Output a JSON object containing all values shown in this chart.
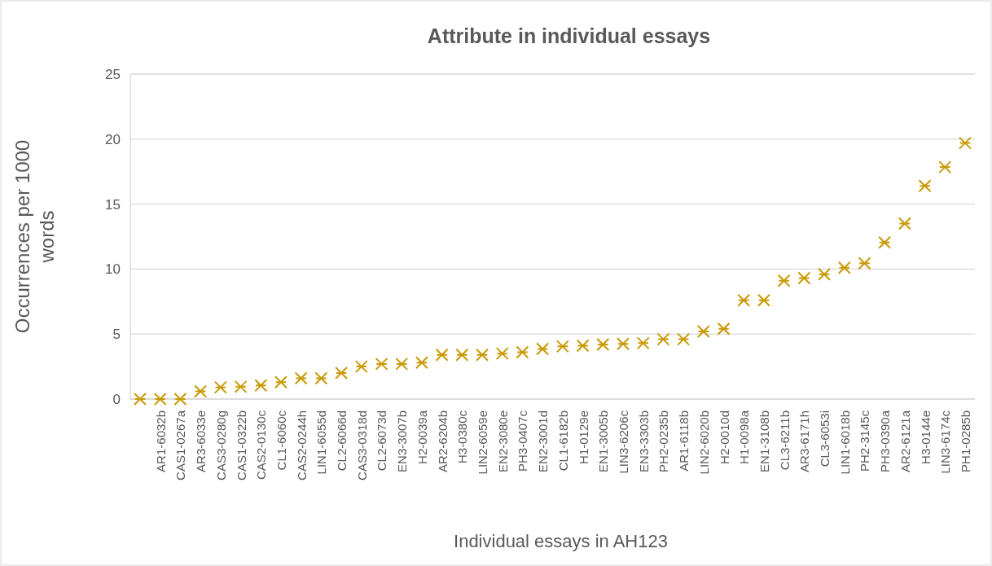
{
  "chart_data": {
    "type": "scatter",
    "title": "Attribute in individual essays",
    "xlabel": "Individual essays in AH123",
    "ylabel": "Occurrences per 1000 words",
    "categories": [
      null,
      "AR1-6032b",
      "CAS1-0267a",
      "AR3-6033e",
      "CAS3-0280g",
      "CAS1-0322b",
      "CAS2-0130c",
      "CL1-6060c",
      "CAS2-0244h",
      "LIN1-6055d",
      "CL2-6066d",
      "CAS3-0318d",
      "CL2-6073d",
      "EN3-3007b",
      "H2-0039a",
      "AR2-6204b",
      "H3-0380c",
      "LIN2-6059e",
      "EN2-3080e",
      "PH3-0407c",
      "EN2-3001d",
      "CL1-6182b",
      "H1-0129e",
      "EN1-3005b",
      "LIN3-6206c",
      "EN3-3303b",
      "PH2-0235b",
      "AR1-6118b",
      "LIN2-6020b",
      "H2-0010d",
      "H1-0098a",
      "EN1-3108b",
      "CL3-6211b",
      "AR3-6171h",
      "CL3-6053i",
      "LIN1-6018b",
      "PH2-3145c",
      "PH3-0390a",
      "AR2-6121a",
      "H3-0144e",
      "LIN3-6174c",
      "PH1-0285b"
    ],
    "series": [
      {
        "color": "#c99a06",
        "values": [
          0,
          0,
          0,
          0.6,
          0.9,
          0.95,
          1.05,
          1.3,
          1.6,
          1.6,
          2.0,
          2.5,
          2.7,
          2.7,
          2.8,
          3.4,
          3.4,
          3.4,
          3.5,
          3.6,
          3.85,
          4.05,
          4.1,
          4.2,
          4.25,
          4.3,
          4.6,
          4.6,
          5.2,
          5.4,
          7.6,
          7.6,
          9.1,
          9.3,
          9.6,
          10.1,
          10.45,
          12.05,
          13.5,
          16.4,
          17.85,
          19.7
        ]
      }
    ],
    "ylim": [
      0,
      25
    ],
    "yticks": [
      0,
      5,
      10,
      15,
      20,
      25
    ],
    "grid": "y",
    "marker": "cross"
  }
}
